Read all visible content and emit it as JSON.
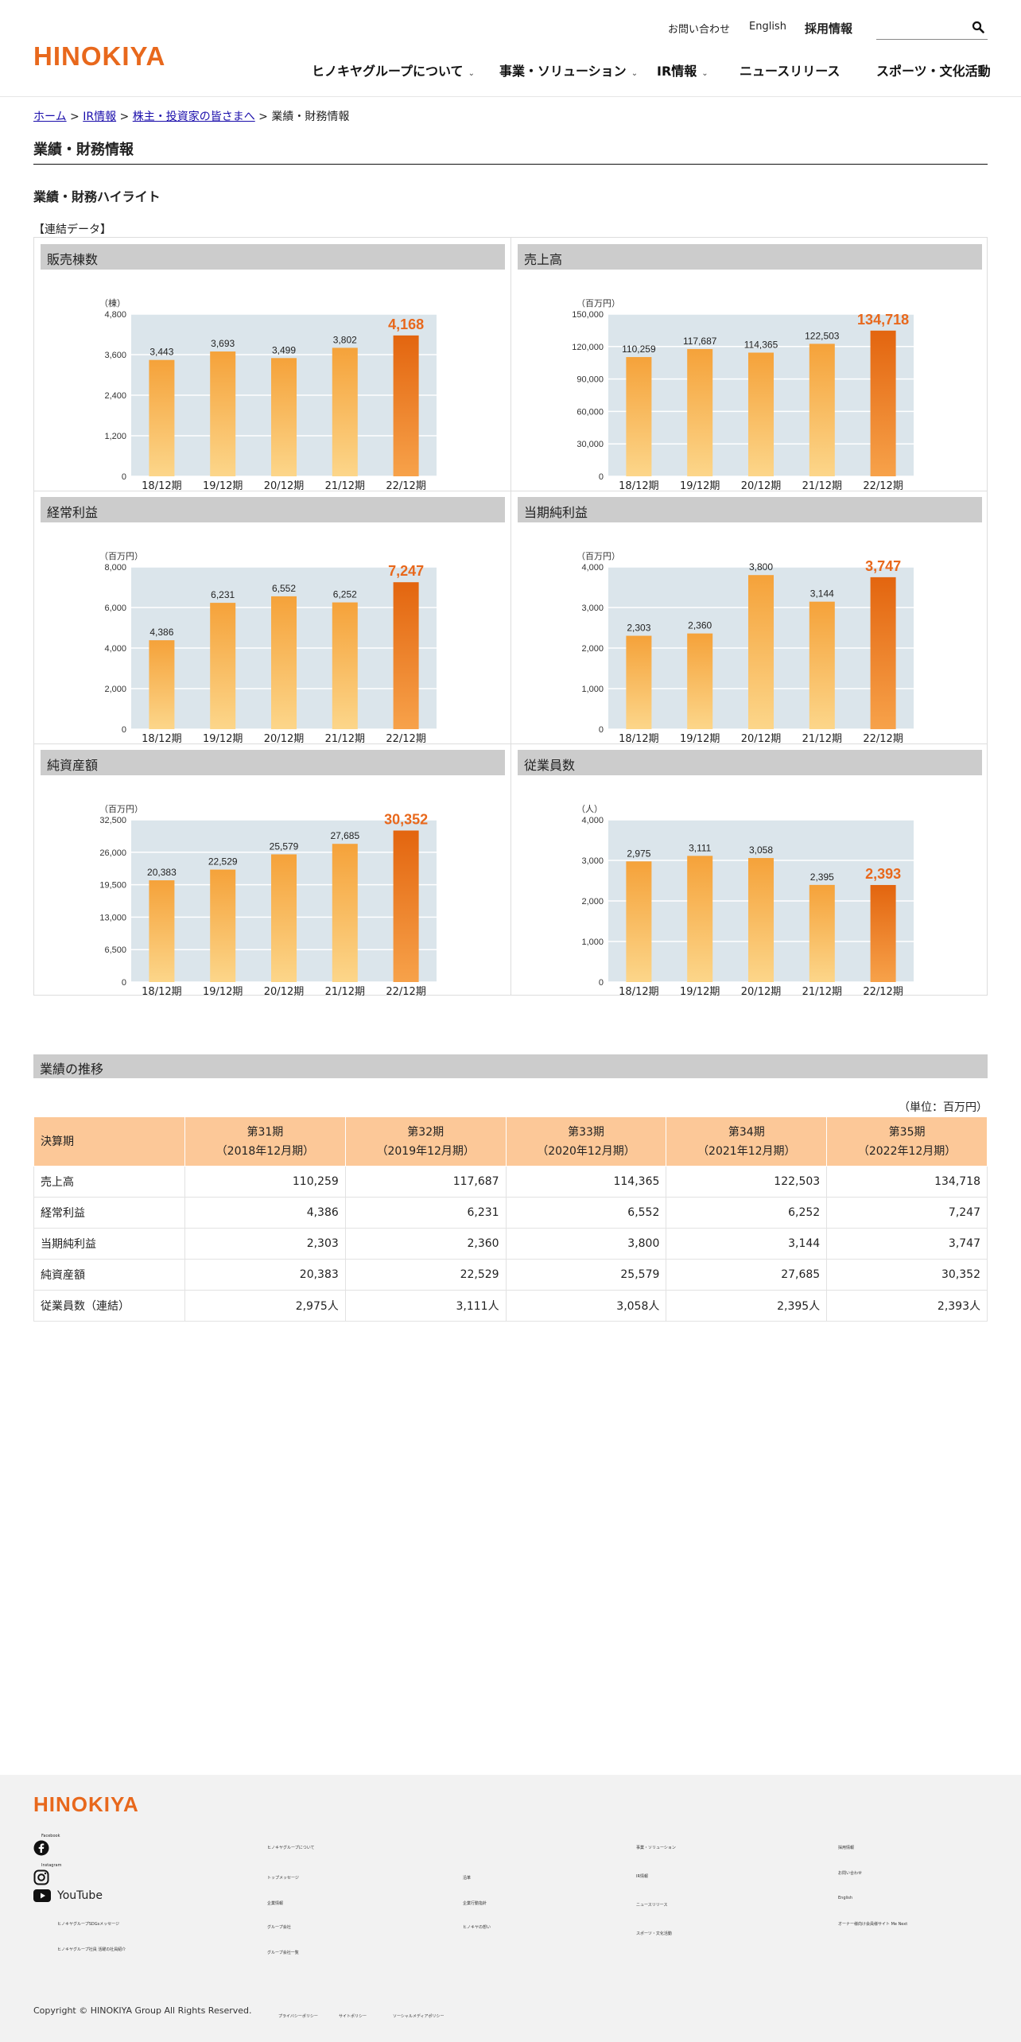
{
  "header": {
    "logo": "HINOKIYA",
    "util": {
      "contact": "お問い合わせ",
      "english": "English",
      "recruit": "採用情報"
    },
    "nav": [
      {
        "label": "ヒノキヤグループについて",
        "chevron": true
      },
      {
        "label": "事業・ソリューション",
        "chevron": true
      },
      {
        "label": "IR情報",
        "chevron": true
      },
      {
        "label": "ニュースリリース",
        "chevron": false
      },
      {
        "label": "スポーツ・文化活動",
        "chevron": false
      }
    ],
    "chevron_glyph": "⌄"
  },
  "breadcrumb": {
    "home": "ホーム",
    "ir": "IR情報",
    "shareholders": "株主・投資家の皆さまへ",
    "current": "業績・財務情報",
    "sep": " > "
  },
  "page_title": "業績・財務情報",
  "highlight_title": "業績・財務ハイライト",
  "group_label": "【連結データ】",
  "chart_data": [
    {
      "type": "bar",
      "title": "販売棟数",
      "unit": "（棟）",
      "categories": [
        "18/12期",
        "19/12期",
        "20/12期",
        "21/12期",
        "22/12期"
      ],
      "values": [
        3443,
        3693,
        3499,
        3802,
        4168
      ],
      "labels": [
        "3,443",
        "3,693",
        "3,499",
        "3,802",
        "4,168"
      ],
      "ylim": [
        0,
        4800
      ],
      "yticks": [
        "0",
        "1,200",
        "2,400",
        "3,600",
        "4,800"
      ]
    },
    {
      "type": "bar",
      "title": "売上高",
      "unit": "（百万円）",
      "categories": [
        "18/12期",
        "19/12期",
        "20/12期",
        "21/12期",
        "22/12期"
      ],
      "values": [
        110259,
        117687,
        114365,
        122503,
        134718
      ],
      "labels": [
        "110,259",
        "117,687",
        "114,365",
        "122,503",
        "134,718"
      ],
      "ylim": [
        0,
        150000
      ],
      "yticks": [
        "0",
        "30,000",
        "60,000",
        "90,000",
        "120,000",
        "150,000"
      ]
    },
    {
      "type": "bar",
      "title": "経常利益",
      "unit": "（百万円）",
      "categories": [
        "18/12期",
        "19/12期",
        "20/12期",
        "21/12期",
        "22/12期"
      ],
      "values": [
        4386,
        6231,
        6552,
        6252,
        7247
      ],
      "labels": [
        "4,386",
        "6,231",
        "6,552",
        "6,252",
        "7,247"
      ],
      "ylim": [
        0,
        8000
      ],
      "yticks": [
        "0",
        "2,000",
        "4,000",
        "6,000",
        "8,000"
      ]
    },
    {
      "type": "bar",
      "title": "当期純利益",
      "unit": "（百万円）",
      "categories": [
        "18/12期",
        "19/12期",
        "20/12期",
        "21/12期",
        "22/12期"
      ],
      "values": [
        2303,
        2360,
        3800,
        3144,
        3747
      ],
      "labels": [
        "2,303",
        "2,360",
        "3,800",
        "3,144",
        "3,747"
      ],
      "ylim": [
        0,
        4000
      ],
      "yticks": [
        "0",
        "1,000",
        "2,000",
        "3,000",
        "4,000"
      ]
    },
    {
      "type": "bar",
      "title": "純資産額",
      "unit": "（百万円）",
      "categories": [
        "18/12期",
        "19/12期",
        "20/12期",
        "21/12期",
        "22/12期"
      ],
      "values": [
        20383,
        22529,
        25579,
        27685,
        30352
      ],
      "labels": [
        "20,383",
        "22,529",
        "25,579",
        "27,685",
        "30,352"
      ],
      "ylim": [
        0,
        32500
      ],
      "yticks": [
        "0",
        "6,500",
        "13,000",
        "19,500",
        "26,000",
        "32,500"
      ]
    },
    {
      "type": "bar",
      "title": "従業員数",
      "unit": "（人）",
      "categories": [
        "18/12期",
        "19/12期",
        "20/12期",
        "21/12期",
        "22/12期"
      ],
      "values": [
        2975,
        3111,
        3058,
        2395,
        2393
      ],
      "labels": [
        "2,975",
        "3,111",
        "3,058",
        "2,395",
        "2,393"
      ],
      "ylim": [
        0,
        4000
      ],
      "yticks": [
        "0",
        "1,000",
        "2,000",
        "3,000",
        "4,000"
      ]
    }
  ],
  "colors": {
    "bar_top": "#f5a23a",
    "bar_bottom": "#fcd68a",
    "highlight_top": "#e3650f",
    "highlight_bottom": "#f7a24a",
    "plot_bg": "#dbe5eb",
    "highlight_label": "#e8681c",
    "accent": "#e8681c"
  },
  "trend": {
    "title": "業績の推移",
    "unit": "（単位：百万円）",
    "header_first": "決算期",
    "columns": [
      {
        "period": "第31期",
        "date": "（2018年12月期）"
      },
      {
        "period": "第32期",
        "date": "（2019年12月期）"
      },
      {
        "period": "第33期",
        "date": "（2020年12月期）"
      },
      {
        "period": "第34期",
        "date": "（2021年12月期）"
      },
      {
        "period": "第35期",
        "date": "（2022年12月期）"
      }
    ],
    "rows": [
      {
        "label": "売上高",
        "values": [
          "110,259",
          "117,687",
          "114,365",
          "122,503",
          "134,718"
        ]
      },
      {
        "label": "経常利益",
        "values": [
          "4,386",
          "6,231",
          "6,552",
          "6,252",
          "7,247"
        ]
      },
      {
        "label": "当期純利益",
        "values": [
          "2,303",
          "2,360",
          "3,800",
          "3,144",
          "3,747"
        ]
      },
      {
        "label": "純資産額",
        "values": [
          "20,383",
          "22,529",
          "25,579",
          "27,685",
          "30,352"
        ]
      },
      {
        "label": "従業員数（連結）",
        "values": [
          "2,975人",
          "3,111人",
          "3,058人",
          "2,395人",
          "2,393人"
        ]
      }
    ]
  },
  "footer": {
    "logo": "HINOKIYA",
    "facebook": "Facebook",
    "instagram": "Instagram",
    "youtube": "YouTube",
    "left_links": [
      "ヒノキヤグループSDGsメッセージ",
      "ヒノキヤグループ社員 活躍の社員紹介"
    ],
    "col1": {
      "heading": "ヒノキヤグループについて",
      "links": [
        "トップメッセージ",
        "企業情報",
        "グループ会社",
        "グループ会社一覧"
      ]
    },
    "col2": {
      "links": [
        "沿革",
        "企業行動指針",
        "ヒノキヤの想い"
      ]
    },
    "col3": {
      "links": [
        "事業・ソリューション",
        "IR情報",
        "ニュースリリース",
        "スポーツ・文化活動"
      ]
    },
    "col4": {
      "links": [
        "採用情報",
        "お問い合わせ",
        "English",
        "オーナー様向け会員様サイト Me Next"
      ]
    },
    "bottom_links": [
      "プライバシーポリシー",
      "サイトポリシー",
      "ソーシャルメディアポリシー"
    ],
    "copyright": "Copyright © HINOKIYA Group All Rights Reserved."
  }
}
